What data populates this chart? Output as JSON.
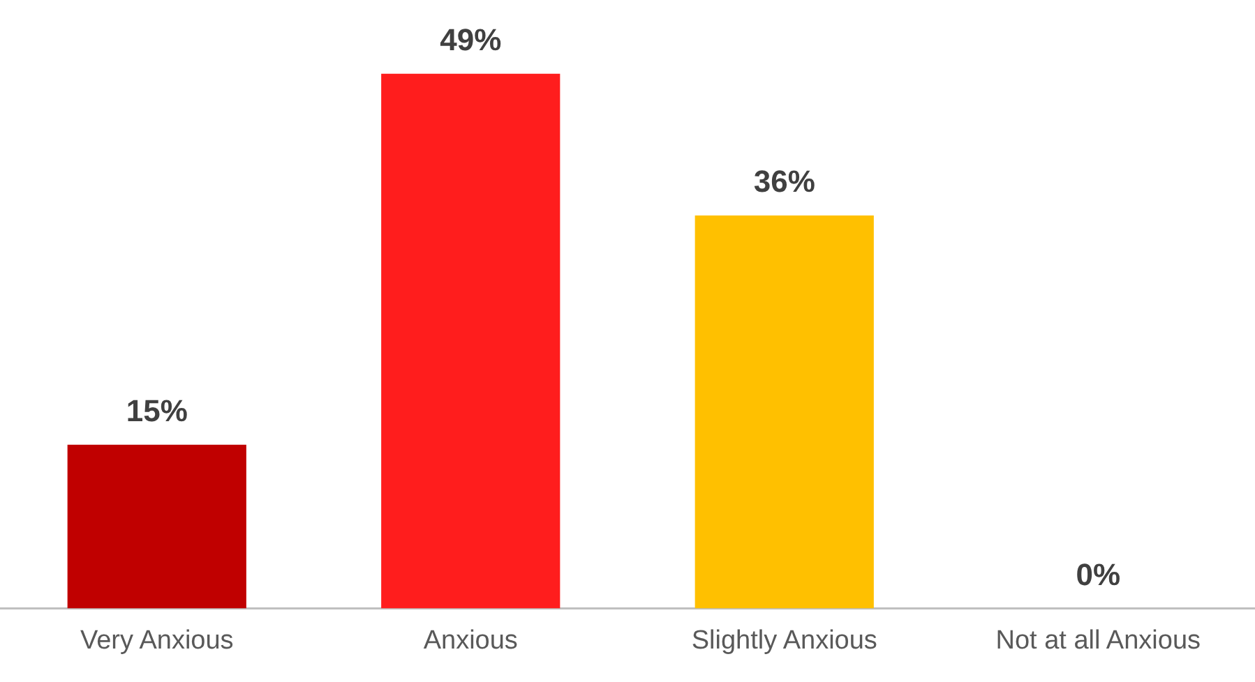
{
  "chart_data": {
    "type": "bar",
    "categories": [
      "Very Anxious",
      "Anxious",
      "Slightly Anxious",
      "Not at all Anxious"
    ],
    "values": [
      15,
      49,
      36,
      0
    ],
    "colors": [
      "#c00000",
      "#ff1d1d",
      "#ffc000",
      "#ffc000"
    ],
    "value_labels": [
      "15%",
      "49%",
      "36%",
      "0%"
    ],
    "grid": false,
    "legend": false
  }
}
